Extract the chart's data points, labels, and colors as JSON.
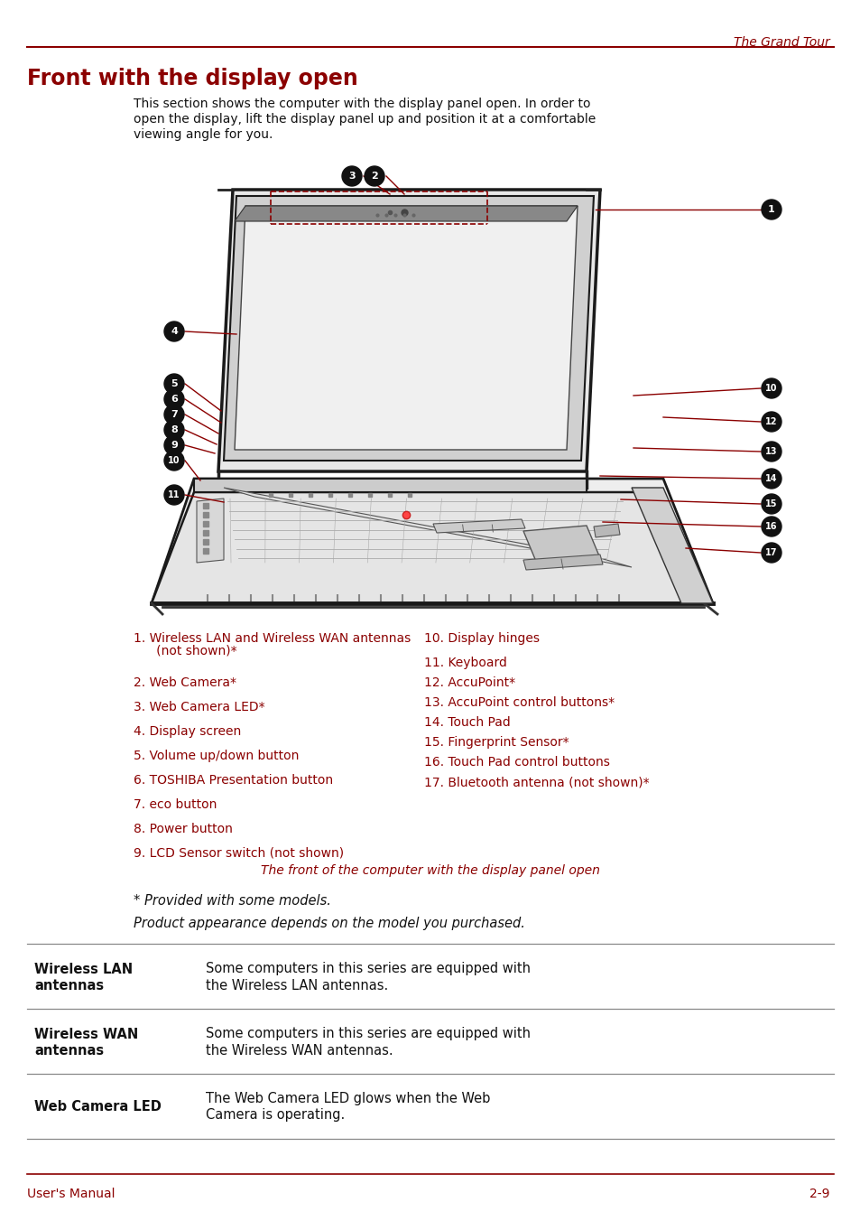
{
  "page_bg": "#ffffff",
  "red_color": "#8B0000",
  "header_text": "The Grand Tour",
  "title": "Front with the display open",
  "intro_text": "This section shows the computer with the display panel open. In order to open the display, lift the display panel up and position it at a comfortable viewing angle for you.",
  "caption": "The front of the computer with the display panel open",
  "note1": "* Provided with some models.",
  "note2": "Product appearance depends on the model you purchased.",
  "left_items": [
    [
      "1. Wireless LAN and Wireless WAN antennas",
      "   (not shown)*"
    ],
    [
      "2. Web Camera*"
    ],
    [
      "3. Web Camera LED*"
    ],
    [
      "4. Display screen"
    ],
    [
      "5. Volume up/down button"
    ],
    [
      "6. TOSHIBA Presentation button"
    ],
    [
      "7. eco button"
    ],
    [
      "8. Power button"
    ],
    [
      "9. LCD Sensor switch (not shown)"
    ]
  ],
  "right_items": [
    [
      "10. Display hinges"
    ],
    [
      "11. Keyboard"
    ],
    [
      "12. AccuPoint*"
    ],
    [
      "13. AccuPoint control buttons*"
    ],
    [
      "14. Touch Pad"
    ],
    [
      "15. Fingerprint Sensor*"
    ],
    [
      "16. Touch Pad control buttons"
    ],
    [
      "17. Bluetooth antenna (not shown)*"
    ]
  ],
  "table_rows": [
    {
      "label": "Wireless LAN\nantennas",
      "text": "Some computers in this series are equipped with\nthe Wireless LAN antennas."
    },
    {
      "label": "Wireless WAN\nantennas",
      "text": "Some computers in this series are equipped with\nthe Wireless WAN antennas."
    },
    {
      "label": "Web Camera LED",
      "text": "The Web Camera LED glows when the Web\nCamera is operating."
    }
  ],
  "footer_left": "User's Manual",
  "footer_right": "2-9"
}
